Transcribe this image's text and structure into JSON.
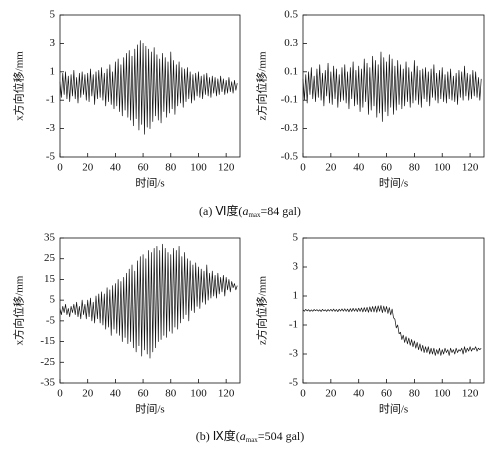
{
  "chart_data": [
    {
      "type": "line",
      "x_label": "时间/s",
      "y_label": "x方向位移/mm",
      "x": [
        0,
        1,
        2,
        3,
        4,
        5,
        6,
        7,
        8,
        9,
        10,
        11,
        12,
        13,
        14,
        15,
        16,
        17,
        18,
        19,
        20,
        21,
        22,
        23,
        24,
        25,
        26,
        27,
        28,
        29,
        30,
        31,
        32,
        33,
        34,
        35,
        36,
        37,
        38,
        39,
        40,
        41,
        42,
        43,
        44,
        45,
        46,
        47,
        48,
        49,
        50,
        51,
        52,
        53,
        54,
        55,
        56,
        57,
        58,
        59,
        60,
        61,
        62,
        63,
        64,
        65,
        66,
        67,
        68,
        69,
        70,
        71,
        72,
        73,
        74,
        75,
        76,
        77,
        78,
        79,
        80,
        81,
        82,
        83,
        84,
        85,
        86,
        87,
        88,
        89,
        90,
        91,
        92,
        93,
        94,
        95,
        96,
        97,
        98,
        99,
        100,
        101,
        102,
        103,
        104,
        105,
        106,
        107,
        108,
        109,
        110,
        111,
        112,
        113,
        114,
        115,
        116,
        117,
        118,
        119,
        120,
        121,
        122,
        123,
        124,
        125,
        126,
        127,
        128
      ],
      "series": [
        {
          "color": "#111111",
          "values": [
            0.3,
            -0.8,
            0.9,
            -0.6,
            1.0,
            -0.9,
            0.7,
            -1.1,
            0.8,
            -0.7,
            1.1,
            -0.9,
            0.6,
            -1.2,
            0.9,
            -0.8,
            1.0,
            -0.6,
            0.8,
            -1.0,
            0.9,
            -1.1,
            1.2,
            -0.7,
            0.8,
            -1.3,
            1.0,
            -0.9,
            1.1,
            -0.8,
            1.3,
            -1.0,
            0.9,
            -1.4,
            1.2,
            -1.1,
            1.5,
            -1.3,
            1.0,
            -1.6,
            1.7,
            -1.4,
            1.9,
            -1.8,
            1.5,
            -2.1,
            2.0,
            -1.7,
            2.3,
            -2.2,
            2.5,
            -2.4,
            2.1,
            -2.8,
            2.6,
            -2.3,
            2.9,
            -3.1,
            3.2,
            -2.7,
            3.0,
            -3.4,
            2.8,
            -2.9,
            2.6,
            -3.0,
            2.4,
            -2.5,
            2.7,
            -2.1,
            2.2,
            -2.4,
            1.9,
            -2.6,
            2.3,
            -1.8,
            2.0,
            -2.2,
            1.7,
            -1.9,
            2.4,
            -1.6,
            1.8,
            -2.0,
            1.5,
            -1.4,
            1.7,
            -1.2,
            1.3,
            -1.5,
            1.2,
            -1.1,
            1.3,
            -0.9,
            1.0,
            -1.2,
            0.8,
            -1.0,
            0.9,
            -0.7,
            1.0,
            -0.8,
            0.7,
            -0.9,
            0.8,
            -0.6,
            0.9,
            -0.7,
            0.6,
            -0.8,
            0.7,
            -0.5,
            0.6,
            -0.7,
            0.5,
            -0.6,
            0.7,
            -0.4,
            0.5,
            -0.6,
            0.4,
            -0.5,
            0.6,
            -0.4,
            0.3,
            -0.5,
            0.4,
            -0.3,
            0.2
          ]
        }
      ],
      "xlim": [
        0,
        130
      ],
      "xticks": [
        0,
        20,
        40,
        60,
        80,
        100,
        120
      ],
      "ylim": [
        -5,
        5
      ],
      "yticks": [
        -5,
        -3,
        -1,
        1,
        3,
        5
      ]
    },
    {
      "type": "line",
      "x_label": "时间/s",
      "y_label": "z方向位移/mm",
      "x": [
        0,
        1,
        2,
        3,
        4,
        5,
        6,
        7,
        8,
        9,
        10,
        11,
        12,
        13,
        14,
        15,
        16,
        17,
        18,
        19,
        20,
        21,
        22,
        23,
        24,
        25,
        26,
        27,
        28,
        29,
        30,
        31,
        32,
        33,
        34,
        35,
        36,
        37,
        38,
        39,
        40,
        41,
        42,
        43,
        44,
        45,
        46,
        47,
        48,
        49,
        50,
        51,
        52,
        53,
        54,
        55,
        56,
        57,
        58,
        59,
        60,
        61,
        62,
        63,
        64,
        65,
        66,
        67,
        68,
        69,
        70,
        71,
        72,
        73,
        74,
        75,
        76,
        77,
        78,
        79,
        80,
        81,
        82,
        83,
        84,
        85,
        86,
        87,
        88,
        89,
        90,
        91,
        92,
        93,
        94,
        95,
        96,
        97,
        98,
        99,
        100,
        101,
        102,
        103,
        104,
        105,
        106,
        107,
        108,
        109,
        110,
        111,
        112,
        113,
        114,
        115,
        116,
        117,
        118,
        119,
        120,
        121,
        122,
        123,
        124,
        125,
        126,
        127,
        128
      ],
      "series": [
        {
          "color": "#111111",
          "values": [
            0.05,
            -0.1,
            0.08,
            -0.12,
            0.1,
            -0.06,
            0.13,
            -0.09,
            0.07,
            -0.11,
            0.12,
            -0.08,
            0.15,
            -0.1,
            0.09,
            -0.14,
            0.11,
            -0.07,
            0.16,
            -0.12,
            0.1,
            -0.13,
            0.14,
            -0.09,
            0.12,
            -0.15,
            0.08,
            -0.11,
            0.13,
            -0.1,
            0.15,
            -0.12,
            0.1,
            -0.16,
            0.13,
            -0.09,
            0.17,
            -0.14,
            0.11,
            -0.13,
            0.14,
            -0.18,
            0.12,
            -0.15,
            0.19,
            -0.11,
            0.16,
            -0.2,
            0.13,
            -0.17,
            0.21,
            -0.14,
            0.18,
            -0.22,
            0.15,
            -0.19,
            0.24,
            -0.25,
            0.2,
            -0.18,
            0.17,
            -0.21,
            0.22,
            -0.15,
            0.19,
            -0.2,
            0.14,
            -0.17,
            0.18,
            -0.13,
            0.15,
            -0.16,
            0.12,
            -0.14,
            0.17,
            -0.11,
            0.13,
            -0.15,
            0.1,
            -0.12,
            0.18,
            -0.1,
            0.14,
            -0.13,
            0.11,
            -0.15,
            0.12,
            -0.09,
            0.13,
            -0.11,
            0.1,
            -0.14,
            0.12,
            -0.08,
            0.15,
            -0.1,
            0.09,
            -0.12,
            0.11,
            -0.09,
            0.13,
            -0.11,
            0.08,
            -0.12,
            0.1,
            -0.09,
            0.12,
            -0.1,
            0.07,
            -0.11,
            0.09,
            -0.13,
            0.11,
            -0.08,
            0.1,
            -0.1,
            0.14,
            -0.07,
            0.09,
            -0.1,
            0.08,
            -0.09,
            0.11,
            -0.07,
            0.1,
            -0.08,
            0.06,
            -0.1,
            0.05
          ]
        }
      ],
      "xlim": [
        0,
        130
      ],
      "xticks": [
        0,
        20,
        40,
        60,
        80,
        100,
        120
      ],
      "ylim": [
        -0.5,
        0.5
      ],
      "yticks": [
        -0.5,
        -0.3,
        -0.1,
        0.1,
        0.3,
        0.5
      ]
    },
    {
      "type": "line",
      "x_label": "时间/s",
      "y_label": "x方向位移/mm",
      "x": [
        0,
        1,
        2,
        3,
        4,
        5,
        6,
        7,
        8,
        9,
        10,
        11,
        12,
        13,
        14,
        15,
        16,
        17,
        18,
        19,
        20,
        21,
        22,
        23,
        24,
        25,
        26,
        27,
        28,
        29,
        30,
        31,
        32,
        33,
        34,
        35,
        36,
        37,
        38,
        39,
        40,
        41,
        42,
        43,
        44,
        45,
        46,
        47,
        48,
        49,
        50,
        51,
        52,
        53,
        54,
        55,
        56,
        57,
        58,
        59,
        60,
        61,
        62,
        63,
        64,
        65,
        66,
        67,
        68,
        69,
        70,
        71,
        72,
        73,
        74,
        75,
        76,
        77,
        78,
        79,
        80,
        81,
        82,
        83,
        84,
        85,
        86,
        87,
        88,
        89,
        90,
        91,
        92,
        93,
        94,
        95,
        96,
        97,
        98,
        99,
        100,
        101,
        102,
        103,
        104,
        105,
        106,
        107,
        108,
        109,
        110,
        111,
        112,
        113,
        114,
        115,
        116,
        117,
        118,
        119,
        120,
        121,
        122,
        123,
        124,
        125,
        126,
        127,
        128
      ],
      "series": [
        {
          "color": "#111111",
          "values": [
            1,
            -2,
            2,
            -1,
            3,
            -2,
            1,
            -3,
            2,
            -1,
            3,
            -2,
            4,
            -3,
            2,
            -4,
            5,
            -2,
            3,
            -4,
            5,
            -3,
            6,
            -5,
            4,
            -6,
            7,
            -4,
            8,
            -6,
            9,
            -7,
            8,
            -9,
            11,
            -8,
            10,
            -12,
            12,
            -9,
            13,
            -11,
            15,
            -12,
            14,
            -15,
            16,
            -13,
            18,
            -16,
            20,
            -15,
            22,
            -18,
            19,
            -20,
            24,
            -17,
            26,
            -22,
            27,
            -19,
            25,
            -21,
            29,
            -23,
            28,
            -20,
            30,
            -18,
            31,
            -15,
            29,
            -14,
            32,
            -12,
            30,
            -13,
            28,
            -10,
            27,
            -11,
            30,
            -8,
            29,
            -9,
            31,
            -6,
            26,
            -4,
            28,
            -2,
            25,
            -5,
            24,
            0,
            22,
            -1,
            23,
            2,
            21,
            1,
            20,
            4,
            19,
            3,
            22,
            5,
            18,
            6,
            19,
            7,
            17,
            6,
            18,
            8,
            16,
            9,
            17,
            7,
            16,
            10,
            15,
            9,
            14,
            11,
            13,
            10,
            12
          ]
        }
      ],
      "xlim": [
        0,
        130
      ],
      "xticks": [
        0,
        20,
        40,
        60,
        80,
        100,
        120
      ],
      "ylim": [
        -35,
        35
      ],
      "yticks": [
        -35,
        -25,
        -15,
        -5,
        5,
        15,
        25,
        35
      ]
    },
    {
      "type": "line",
      "x_label": "时间/s",
      "y_label": "z方向位移/mm",
      "x": [
        0,
        1,
        2,
        3,
        4,
        5,
        6,
        7,
        8,
        9,
        10,
        11,
        12,
        13,
        14,
        15,
        16,
        17,
        18,
        19,
        20,
        21,
        22,
        23,
        24,
        25,
        26,
        27,
        28,
        29,
        30,
        31,
        32,
        33,
        34,
        35,
        36,
        37,
        38,
        39,
        40,
        41,
        42,
        43,
        44,
        45,
        46,
        47,
        48,
        49,
        50,
        51,
        52,
        53,
        54,
        55,
        56,
        57,
        58,
        59,
        60,
        61,
        62,
        63,
        64,
        65,
        66,
        67,
        68,
        69,
        70,
        71,
        72,
        73,
        74,
        75,
        76,
        77,
        78,
        79,
        80,
        81,
        82,
        83,
        84,
        85,
        86,
        87,
        88,
        89,
        90,
        91,
        92,
        93,
        94,
        95,
        96,
        97,
        98,
        99,
        100,
        101,
        102,
        103,
        104,
        105,
        106,
        107,
        108,
        109,
        110,
        111,
        112,
        113,
        114,
        115,
        116,
        117,
        118,
        119,
        120,
        121,
        122,
        123,
        124,
        125,
        126,
        127,
        128
      ],
      "series": [
        {
          "color": "#111111",
          "values": [
            0.05,
            -0.05,
            0.08,
            -0.03,
            0.06,
            -0.06,
            0.04,
            -0.05,
            0.07,
            -0.02,
            0.06,
            -0.04,
            0.05,
            -0.07,
            0.08,
            -0.03,
            0.05,
            -0.06,
            0.07,
            -0.04,
            0.08,
            -0.05,
            0.1,
            -0.06,
            0.07,
            -0.08,
            0.09,
            -0.04,
            0.11,
            -0.05,
            0.12,
            -0.06,
            0.1,
            -0.09,
            0.13,
            -0.07,
            0.15,
            -0.05,
            0.14,
            -0.08,
            0.16,
            -0.06,
            0.18,
            -0.1,
            0.2,
            -0.08,
            0.22,
            -0.12,
            0.25,
            -0.09,
            0.28,
            -0.1,
            0.3,
            -0.12,
            0.32,
            -0.05,
            0.35,
            -0.15,
            0.3,
            -0.1,
            0.28,
            -0.2,
            0.2,
            -0.3,
            0.1,
            -0.5,
            -0.6,
            -1.2,
            -1.0,
            -1.6,
            -1.5,
            -2.0,
            -1.7,
            -2.2,
            -1.8,
            -2.3,
            -1.9,
            -2.4,
            -2.0,
            -2.5,
            -2.1,
            -2.6,
            -2.2,
            -2.7,
            -2.3,
            -2.8,
            -2.4,
            -2.9,
            -2.5,
            -2.9,
            -2.5,
            -3.0,
            -2.6,
            -3.0,
            -2.6,
            -3.1,
            -2.7,
            -3.0,
            -2.6,
            -3.1,
            -2.7,
            -3.0,
            -2.6,
            -2.9,
            -2.7,
            -3.1,
            -2.6,
            -2.9,
            -2.7,
            -3.0,
            -2.6,
            -2.9,
            -2.7,
            -2.8,
            -2.6,
            -3.0,
            -2.5,
            -2.9,
            -2.6,
            -2.8,
            -2.5,
            -2.8,
            -2.6,
            -2.7,
            -2.5,
            -2.8,
            -2.6,
            -2.7,
            -2.6
          ]
        }
      ],
      "xlim": [
        0,
        130
      ],
      "xticks": [
        0,
        20,
        40,
        60,
        80,
        100,
        120
      ],
      "ylim": [
        -5,
        5
      ],
      "yticks": [
        -5,
        -3,
        -1,
        1,
        3,
        5
      ]
    }
  ],
  "captions": [
    {
      "prefix": "(a) Ⅵ度(",
      "symbol": "a",
      "subscript": "max",
      "suffix": "=84 gal)"
    },
    {
      "prefix": "(b) Ⅸ度(",
      "symbol": "a",
      "subscript": "max",
      "suffix": "=504 gal)"
    }
  ]
}
